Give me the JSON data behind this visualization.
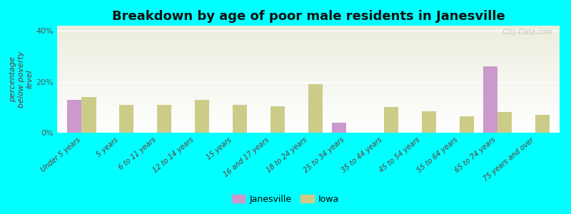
{
  "title": "Breakdown by age of poor male residents in Janesville",
  "ylabel": "percentage\nbelow poverty\nlevel",
  "background_color": "#00FFFF",
  "categories": [
    "Under 5 years",
    "5 years",
    "6 to 11 years",
    "12 to 14 years",
    "15 years",
    "16 and 17 years",
    "18 to 24 years",
    "25 to 34 years",
    "35 to 44 years",
    "45 to 54 years",
    "55 to 64 years",
    "65 to 74 years",
    "75 years and over"
  ],
  "janesville": [
    13.0,
    0,
    0,
    0,
    0,
    0,
    0,
    4.0,
    0,
    0,
    0,
    26.0,
    0
  ],
  "iowa": [
    14.0,
    11.0,
    11.0,
    13.0,
    11.0,
    10.5,
    19.0,
    0,
    10.0,
    8.5,
    6.5,
    8.0,
    7.0
  ],
  "janesville_color": "#cc99cc",
  "iowa_color": "#cccc88",
  "bar_width": 0.38,
  "ylim": [
    0,
    42
  ],
  "yticks": [
    0,
    20,
    40
  ],
  "ytick_labels": [
    "0%",
    "20%",
    "40%"
  ],
  "watermark": "  City-Data.com",
  "title_fontsize": 13,
  "axis_label_fontsize": 8,
  "tick_label_fontsize": 7,
  "legend_fontsize": 9
}
